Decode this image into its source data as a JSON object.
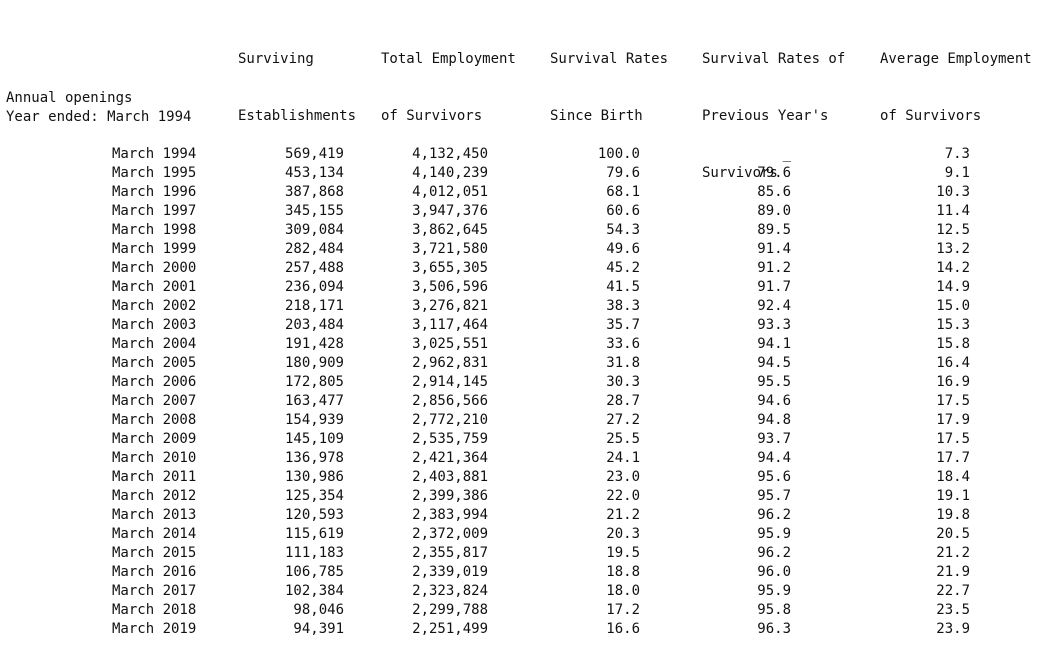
{
  "headers": {
    "surviving_est": [
      "Surviving",
      "Establishments"
    ],
    "total_emp": [
      "Total Employment",
      "of Survivors"
    ],
    "surv_birth": [
      "Survival Rates",
      "Since Birth"
    ],
    "surv_prev": [
      "Survival Rates of",
      "Previous Year's",
      "Survivors"
    ],
    "avg_emp": [
      "Average Employment",
      "of Survivors"
    ]
  },
  "section": {
    "title": "Annual openings",
    "subtitle": "Year ended: March 1994"
  },
  "rows": [
    {
      "year": "March 1994",
      "est": "569,419",
      "emp": "4,132,450",
      "birth": "100.0",
      "prev": "_",
      "avg": "7.3"
    },
    {
      "year": "March 1995",
      "est": "453,134",
      "emp": "4,140,239",
      "birth": "79.6",
      "prev": "79.6",
      "avg": "9.1"
    },
    {
      "year": "March 1996",
      "est": "387,868",
      "emp": "4,012,051",
      "birth": "68.1",
      "prev": "85.6",
      "avg": "10.3"
    },
    {
      "year": "March 1997",
      "est": "345,155",
      "emp": "3,947,376",
      "birth": "60.6",
      "prev": "89.0",
      "avg": "11.4"
    },
    {
      "year": "March 1998",
      "est": "309,084",
      "emp": "3,862,645",
      "birth": "54.3",
      "prev": "89.5",
      "avg": "12.5"
    },
    {
      "year": "March 1999",
      "est": "282,484",
      "emp": "3,721,580",
      "birth": "49.6",
      "prev": "91.4",
      "avg": "13.2"
    },
    {
      "year": "March 2000",
      "est": "257,488",
      "emp": "3,655,305",
      "birth": "45.2",
      "prev": "91.2",
      "avg": "14.2"
    },
    {
      "year": "March 2001",
      "est": "236,094",
      "emp": "3,506,596",
      "birth": "41.5",
      "prev": "91.7",
      "avg": "14.9"
    },
    {
      "year": "March 2002",
      "est": "218,171",
      "emp": "3,276,821",
      "birth": "38.3",
      "prev": "92.4",
      "avg": "15.0"
    },
    {
      "year": "March 2003",
      "est": "203,484",
      "emp": "3,117,464",
      "birth": "35.7",
      "prev": "93.3",
      "avg": "15.3"
    },
    {
      "year": "March 2004",
      "est": "191,428",
      "emp": "3,025,551",
      "birth": "33.6",
      "prev": "94.1",
      "avg": "15.8"
    },
    {
      "year": "March 2005",
      "est": "180,909",
      "emp": "2,962,831",
      "birth": "31.8",
      "prev": "94.5",
      "avg": "16.4"
    },
    {
      "year": "March 2006",
      "est": "172,805",
      "emp": "2,914,145",
      "birth": "30.3",
      "prev": "95.5",
      "avg": "16.9"
    },
    {
      "year": "March 2007",
      "est": "163,477",
      "emp": "2,856,566",
      "birth": "28.7",
      "prev": "94.6",
      "avg": "17.5"
    },
    {
      "year": "March 2008",
      "est": "154,939",
      "emp": "2,772,210",
      "birth": "27.2",
      "prev": "94.8",
      "avg": "17.9"
    },
    {
      "year": "March 2009",
      "est": "145,109",
      "emp": "2,535,759",
      "birth": "25.5",
      "prev": "93.7",
      "avg": "17.5"
    },
    {
      "year": "March 2010",
      "est": "136,978",
      "emp": "2,421,364",
      "birth": "24.1",
      "prev": "94.4",
      "avg": "17.7"
    },
    {
      "year": "March 2011",
      "est": "130,986",
      "emp": "2,403,881",
      "birth": "23.0",
      "prev": "95.6",
      "avg": "18.4"
    },
    {
      "year": "March 2012",
      "est": "125,354",
      "emp": "2,399,386",
      "birth": "22.0",
      "prev": "95.7",
      "avg": "19.1"
    },
    {
      "year": "March 2013",
      "est": "120,593",
      "emp": "2,383,994",
      "birth": "21.2",
      "prev": "96.2",
      "avg": "19.8"
    },
    {
      "year": "March 2014",
      "est": "115,619",
      "emp": "2,372,009",
      "birth": "20.3",
      "prev": "95.9",
      "avg": "20.5"
    },
    {
      "year": "March 2015",
      "est": "111,183",
      "emp": "2,355,817",
      "birth": "19.5",
      "prev": "96.2",
      "avg": "21.2"
    },
    {
      "year": "March 2016",
      "est": "106,785",
      "emp": "2,339,019",
      "birth": "18.8",
      "prev": "96.0",
      "avg": "21.9"
    },
    {
      "year": "March 2017",
      "est": "102,384",
      "emp": "2,323,824",
      "birth": "18.0",
      "prev": "95.9",
      "avg": "22.7"
    },
    {
      "year": "March 2018",
      "est": "98,046",
      "emp": "2,299,788",
      "birth": "17.2",
      "prev": "95.8",
      "avg": "23.5"
    },
    {
      "year": "March 2019",
      "est": "94,391",
      "emp": "2,251,499",
      "birth": "16.6",
      "prev": "96.3",
      "avg": "23.9"
    }
  ]
}
